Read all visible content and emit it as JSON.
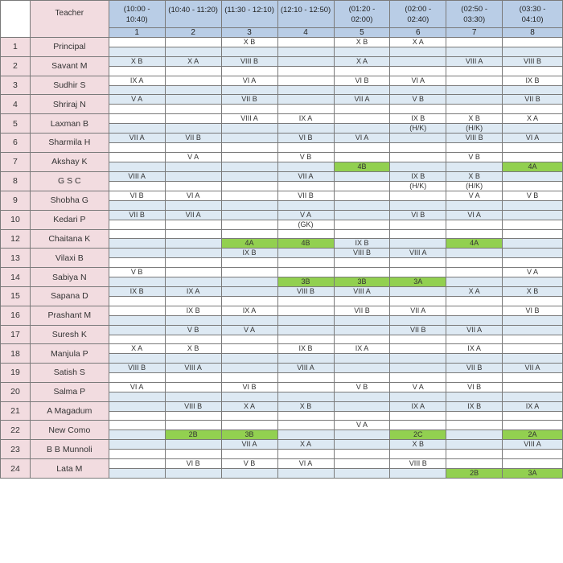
{
  "header": {
    "teacher_label": "Teacher",
    "periods": [
      {
        "time": [
          "(10:00 -",
          "10:40)"
        ],
        "num": "1"
      },
      {
        "time": [
          "(10:40 - 11:20)"
        ],
        "num": "2"
      },
      {
        "time": [
          "(11:30 - 12:10)"
        ],
        "num": "3"
      },
      {
        "time": [
          "(12:10 - 12:50)"
        ],
        "num": "4"
      },
      {
        "time": [
          "(01:20 -",
          "02:00)"
        ],
        "num": "5"
      },
      {
        "time": [
          "(02:00 -",
          "02:40)"
        ],
        "num": "6"
      },
      {
        "time": [
          "(02:50 -",
          "03:30)"
        ],
        "num": "7"
      },
      {
        "time": [
          "(03:30 -",
          "04:10)"
        ],
        "num": "8"
      }
    ]
  },
  "colors": {
    "header_blue": "#b9cde6",
    "row_pink": "#f2dce0",
    "band_blue": "#dde9f3",
    "highlight_green": "#92d050"
  },
  "rows": [
    {
      "no": "1",
      "name": "Principal",
      "hi": [
        "",
        "",
        "X B",
        "",
        "X B",
        "X A",
        "",
        ""
      ],
      "lo": [
        "",
        "",
        "",
        "",
        "",
        "",
        "",
        ""
      ],
      "g": []
    },
    {
      "no": "2",
      "name": "Savant M",
      "hi": [
        "X B",
        "X A",
        "VIII B",
        "",
        "X A",
        "",
        "VIII A",
        "VIII B"
      ],
      "lo": [
        "",
        "",
        "",
        "",
        "",
        "",
        "",
        ""
      ],
      "g": []
    },
    {
      "no": "3",
      "name": "Sudhir S",
      "hi": [
        "IX A",
        "",
        "VI A",
        "",
        "VI B",
        "VI A",
        "",
        "IX B"
      ],
      "lo": [
        "",
        "",
        "",
        "",
        "",
        "",
        "",
        ""
      ],
      "g": []
    },
    {
      "no": "4",
      "name": "Shriraj N",
      "hi": [
        "V A",
        "",
        "VII B",
        "",
        "VII A",
        "V B",
        "",
        "VII B"
      ],
      "lo": [
        "",
        "",
        "",
        "",
        "",
        "",
        "",
        ""
      ],
      "g": []
    },
    {
      "no": "5",
      "name": "Laxman B",
      "hi": [
        "",
        "",
        "VIII A",
        "IX A",
        "",
        "IX B",
        "X B",
        "X A"
      ],
      "lo": [
        "",
        "",
        "",
        "",
        "",
        "(H/K)",
        "(H/K)",
        ""
      ],
      "g": []
    },
    {
      "no": "6",
      "name": "Sharmila H",
      "hi": [
        "VII A",
        "VII B",
        "",
        "VI B",
        "VI A",
        "",
        "VIII B",
        "VI A"
      ],
      "lo": [
        "",
        "",
        "",
        "",
        "",
        "",
        "",
        ""
      ],
      "g": []
    },
    {
      "no": "7",
      "name": "Akshay K",
      "hi": [
        "",
        "V A",
        "",
        "V B",
        "",
        "",
        "V B",
        ""
      ],
      "lo": [
        "",
        "",
        "",
        "",
        "4B",
        "",
        "",
        "4A"
      ],
      "g": [
        4,
        7
      ]
    },
    {
      "no": "8",
      "name": "G S C",
      "hi": [
        "VIII A",
        "",
        "",
        "VII A",
        "",
        "IX B",
        "X B",
        ""
      ],
      "lo": [
        "",
        "",
        "",
        "",
        "",
        "(H/K)",
        "(H/K)",
        ""
      ],
      "g": []
    },
    {
      "no": "9",
      "name": "Shobha G",
      "hi": [
        "VI B",
        "VI A",
        "",
        "VII B",
        "",
        "",
        "V A",
        "V B"
      ],
      "lo": [
        "",
        "",
        "",
        "",
        "",
        "",
        "",
        ""
      ],
      "g": []
    },
    {
      "no": "10",
      "name": "Kedari P",
      "hi": [
        "VII B",
        "VII A",
        "",
        "V A",
        "",
        "VI B",
        "VI A",
        ""
      ],
      "lo": [
        "",
        "",
        "",
        "(GK)",
        "",
        "",
        "",
        ""
      ],
      "g": []
    },
    {
      "no": "12",
      "name": "Chaitana K",
      "hi": [
        "",
        "",
        "",
        "",
        "",
        "",
        "",
        ""
      ],
      "lo": [
        "",
        "",
        "4A",
        "4B",
        "IX B",
        "",
        "4A",
        ""
      ],
      "g": [
        2,
        3,
        6
      ]
    },
    {
      "no": "13",
      "name": "Vilaxi B",
      "hi": [
        "",
        "",
        "IX B",
        "",
        "VIII B",
        "VIII A",
        "",
        ""
      ],
      "lo": [
        "",
        "",
        "",
        "",
        "",
        "",
        "",
        ""
      ],
      "g": []
    },
    {
      "no": "14",
      "name": "Sabiya N",
      "hi": [
        "V B",
        "",
        "",
        "",
        "",
        "",
        "",
        "V A"
      ],
      "lo": [
        "",
        "",
        "",
        "3B",
        "3B",
        "3A",
        "",
        ""
      ],
      "g": [
        3,
        4,
        5
      ]
    },
    {
      "no": "15",
      "name": "Sapana D",
      "hi": [
        "IX B",
        "IX A",
        "",
        "VIII B",
        "VIII A",
        "",
        "X A",
        "X B"
      ],
      "lo": [
        "",
        "",
        "",
        "",
        "",
        "",
        "",
        ""
      ],
      "g": []
    },
    {
      "no": "16",
      "name": "Prashant M",
      "hi": [
        "",
        "IX B",
        "IX A",
        "",
        "VII B",
        "VII A",
        "",
        "VI B"
      ],
      "lo": [
        "",
        "",
        "",
        "",
        "",
        "",
        "",
        ""
      ],
      "g": []
    },
    {
      "no": "17",
      "name": "Suresh K",
      "hi": [
        "",
        "V B",
        "V A",
        "",
        "",
        "VII B",
        "VII A",
        ""
      ],
      "lo": [
        "",
        "",
        "",
        "",
        "",
        "",
        "",
        ""
      ],
      "g": []
    },
    {
      "no": "18",
      "name": "Manjula P",
      "hi": [
        "X A",
        "X B",
        "",
        "IX B",
        "IX A",
        "",
        "IX A",
        ""
      ],
      "lo": [
        "",
        "",
        "",
        "",
        "",
        "",
        "",
        ""
      ],
      "g": []
    },
    {
      "no": "19",
      "name": "Satish S",
      "hi": [
        "VIII B",
        "VIII A",
        "",
        "VIII A",
        "",
        "",
        "VII B",
        "VII A"
      ],
      "lo": [
        "",
        "",
        "",
        "",
        "",
        "",
        "",
        ""
      ],
      "g": []
    },
    {
      "no": "20",
      "name": "Salma P",
      "hi": [
        "VI A",
        "",
        "VI B",
        "",
        "V B",
        "V A",
        "VI B",
        ""
      ],
      "lo": [
        "",
        "",
        "",
        "",
        "",
        "",
        "",
        ""
      ],
      "g": []
    },
    {
      "no": "21",
      "name": "A Magadum",
      "hi": [
        "",
        "VIII B",
        "X A",
        "X B",
        "",
        "IX A",
        "IX B",
        "IX A"
      ],
      "lo": [
        "",
        "",
        "",
        "",
        "",
        "",
        "",
        ""
      ],
      "g": []
    },
    {
      "no": "22",
      "name": "New Como",
      "hi": [
        "",
        "",
        "",
        "",
        "V A",
        "",
        "",
        ""
      ],
      "lo": [
        "",
        "2B",
        "3B",
        "",
        "",
        "2C",
        "",
        "2A"
      ],
      "g": [
        1,
        2,
        5,
        7
      ]
    },
    {
      "no": "23",
      "name": "B B Munnoli",
      "hi": [
        "",
        "",
        "VII A",
        "X A",
        "",
        "X B",
        "",
        "VIII A"
      ],
      "lo": [
        "",
        "",
        "",
        "",
        "",
        "",
        "",
        ""
      ],
      "g": []
    },
    {
      "no": "24",
      "name": "Lata M",
      "hi": [
        "",
        "VI B",
        "V B",
        "VI A",
        "",
        "VIII B",
        "",
        ""
      ],
      "lo": [
        "",
        "",
        "",
        "",
        "",
        "",
        "2B",
        "3A"
      ],
      "g": [
        6,
        7
      ]
    }
  ]
}
